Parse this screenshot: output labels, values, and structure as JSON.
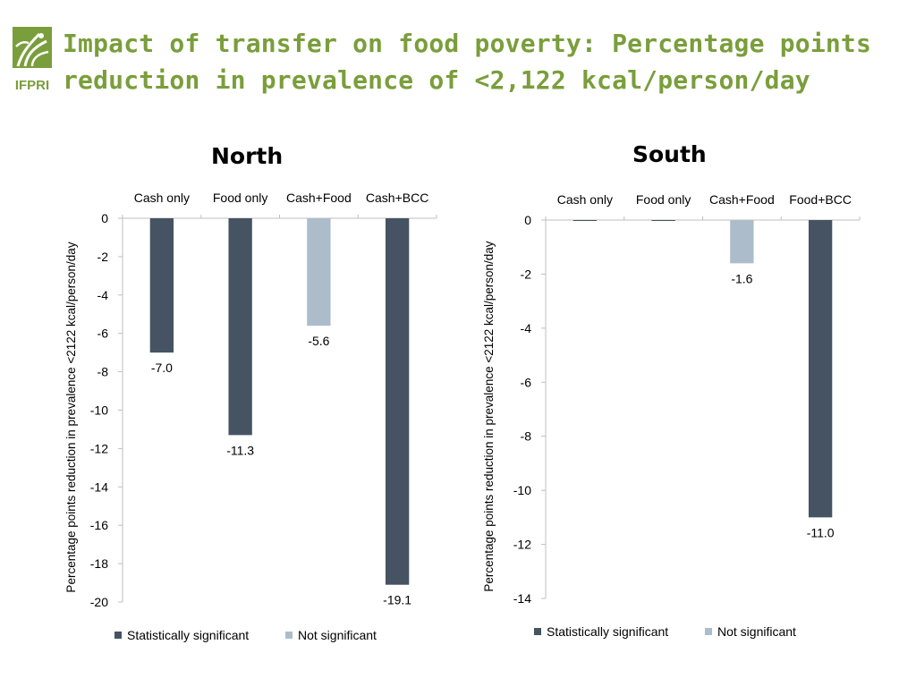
{
  "header": {
    "title_line1": "Impact of transfer on food poverty: Percentage points",
    "title_line2": "reduction in prevalence of <2,122 kcal/person/day",
    "logo_text": "IFPRI"
  },
  "colors": {
    "title": "#7A9E3B",
    "significant": "#455362",
    "not_significant": "#ADBCCB",
    "axis": "#BFBFBF"
  },
  "chart_data": [
    {
      "type": "bar",
      "title": "North",
      "categories": [
        "Cash only",
        "Food only",
        "Cash+Food",
        "Cash+BCC"
      ],
      "values": [
        -7.0,
        -11.3,
        -5.6,
        -19.1
      ],
      "significant": [
        true,
        true,
        false,
        true
      ],
      "value_labels": [
        "-7.0",
        "-11.3",
        "-5.6",
        "-19.1"
      ],
      "ylabel": "Percentage points reduction in prevalence <2122 kcal/person/day",
      "ylim": [
        -20,
        0
      ],
      "yticks": [
        0,
        -2,
        -4,
        -6,
        -8,
        -10,
        -12,
        -14,
        -16,
        -18,
        -20
      ],
      "legend": [
        "Statistically significant",
        "Not significant"
      ],
      "legend_position": "bottom",
      "grid": false
    },
    {
      "type": "bar",
      "title": "South",
      "categories": [
        "Cash only",
        "Food only",
        "Cash+Food",
        "Food+BCC"
      ],
      "values": [
        0,
        0,
        -1.6,
        -11.0
      ],
      "significant": [
        true,
        true,
        false,
        true
      ],
      "value_labels": [
        "",
        "",
        "-1.6",
        "-11.0"
      ],
      "ylabel": "Percentage points reduction in  prevalence <2122 kcal/person/day",
      "ylim": [
        -14,
        0
      ],
      "yticks": [
        0,
        -2,
        -4,
        -6,
        -8,
        -10,
        -12,
        -14
      ],
      "legend": [
        "Statistically significant",
        "Not significant"
      ],
      "legend_position": "bottom",
      "grid": false
    }
  ]
}
